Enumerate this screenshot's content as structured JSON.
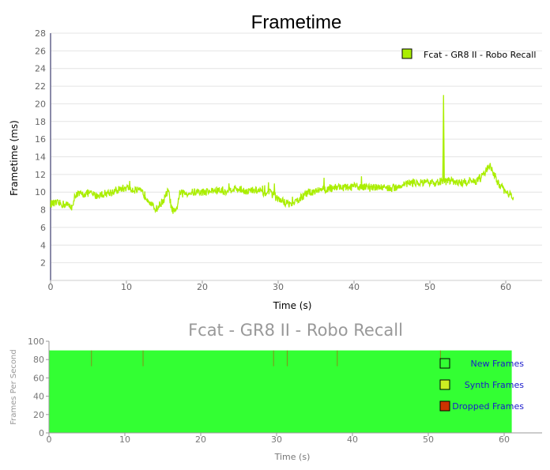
{
  "chart_data": [
    {
      "type": "line",
      "title": "Frametime",
      "xlabel": "Time (s)",
      "ylabel": "Frametime (ms)",
      "xlim": [
        0,
        65
      ],
      "ylim": [
        0,
        28
      ],
      "x_ticks": [
        "0",
        "10",
        "20",
        "30",
        "40",
        "50",
        "60"
      ],
      "y_ticks": [
        "2",
        "4",
        "6",
        "8",
        "10",
        "12",
        "14",
        "16",
        "18",
        "20",
        "22",
        "24",
        "26",
        "28"
      ],
      "grid": true,
      "legend_position": "top-right",
      "series": [
        {
          "name": "Fcat - GR8 II - Robo Recall",
          "color": "#aaee00",
          "x": [
            0,
            1,
            2,
            3,
            3.2,
            4,
            5,
            6,
            7,
            8,
            9,
            10,
            11,
            12,
            12.5,
            13,
            13.5,
            14,
            14.5,
            15,
            15.5,
            16,
            16.5,
            17,
            18,
            19,
            20,
            21,
            22,
            23,
            24,
            25,
            26,
            27,
            28,
            29,
            30,
            31,
            32,
            33,
            34,
            35,
            36,
            37,
            38,
            39,
            40,
            41,
            42,
            43,
            44,
            45,
            46,
            47,
            48,
            49,
            50,
            51,
            51.7,
            51.8,
            51.9,
            52.5,
            53,
            54,
            55,
            56,
            57,
            57.5,
            58,
            58.5,
            59,
            60,
            61
          ],
          "y": [
            8.7,
            8.7,
            8.6,
            8.3,
            9.8,
            9.7,
            9.9,
            9.6,
            9.8,
            10.0,
            10.3,
            10.5,
            10.3,
            10.0,
            9.6,
            9.1,
            8.3,
            8.1,
            8.7,
            9.2,
            10.2,
            8.0,
            7.6,
            9.8,
            9.9,
            10.0,
            10.0,
            10.1,
            10.2,
            10.1,
            10.4,
            10.3,
            10.1,
            10.2,
            10.0,
            9.9,
            9.2,
            8.8,
            8.6,
            9.4,
            9.9,
            10.2,
            10.3,
            10.5,
            10.6,
            10.5,
            10.6,
            10.6,
            10.5,
            10.5,
            10.6,
            10.4,
            10.7,
            11.0,
            11.1,
            11.0,
            11.0,
            11.1,
            11.3,
            21.0,
            11.2,
            11.2,
            11.3,
            11.0,
            11.2,
            11.2,
            11.8,
            12.6,
            13.0,
            12.0,
            11.0,
            10.0,
            9.4
          ]
        }
      ]
    },
    {
      "type": "area",
      "title": "Fcat - GR8 II - Robo Recall",
      "xlabel": "Time (s)",
      "ylabel": "Frames Per Second",
      "xlim": [
        0,
        65
      ],
      "ylim": [
        0,
        100
      ],
      "x_ticks": [
        "0",
        "10",
        "20",
        "30",
        "40",
        "50",
        "60"
      ],
      "y_ticks": [
        "0",
        "20",
        "40",
        "60",
        "80",
        "100"
      ],
      "legend_position": "right",
      "series": [
        {
          "name": "New Frames",
          "color": "#33ff33",
          "x": [
            0,
            61
          ],
          "values": [
            90,
            90
          ]
        },
        {
          "name": "Synth Frames",
          "color": "#ccee22",
          "x": [],
          "values": []
        },
        {
          "name": "Dropped Frames",
          "color": "#cc3300",
          "x": [
            5.6,
            12.4,
            29.6,
            31.4,
            38.0,
            51.6
          ],
          "values": [
            90,
            90,
            90,
            90,
            90,
            90
          ]
        }
      ]
    }
  ]
}
